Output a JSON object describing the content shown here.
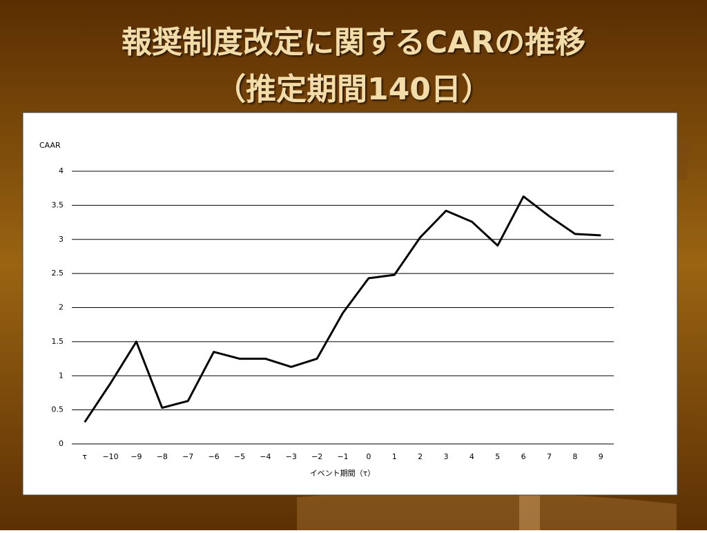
{
  "chart_data": {
    "type": "line",
    "title": "報奨制度改定に関するCARの推移",
    "subtitle": "（推定期間140日）",
    "y_label": "CAAR",
    "x_label": "イベント期間（τ）",
    "categories": [
      "τ",
      "−10",
      "−9",
      "−8",
      "−7",
      "−6",
      "−5",
      "−4",
      "−3",
      "−2",
      "−1",
      "0",
      "1",
      "2",
      "3",
      "4",
      "5",
      "6",
      "7",
      "8",
      "9"
    ],
    "values": [
      0.32,
      0.89,
      1.5,
      0.53,
      0.63,
      1.35,
      1.25,
      1.25,
      1.13,
      1.25,
      1.92,
      2.43,
      2.48,
      3.03,
      3.42,
      3.26,
      2.91,
      3.63,
      3.34,
      3.08,
      3.06
    ],
    "color": "#000000",
    "ylim": [
      0,
      4
    ],
    "yticks": [
      0,
      0.5,
      1,
      1.5,
      2,
      2.5,
      3,
      3.5,
      4
    ],
    "grid": true
  }
}
